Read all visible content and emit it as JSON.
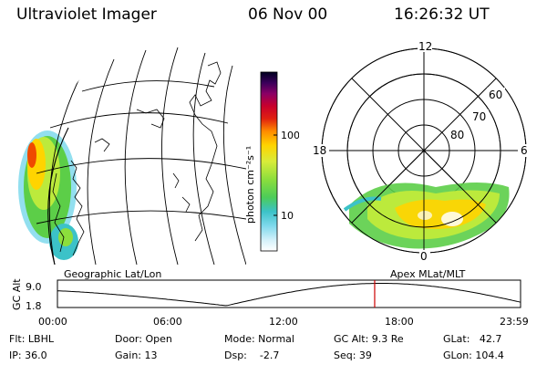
{
  "header": {
    "instrument": "Ultraviolet Imager",
    "date": "06 Nov 00",
    "time": "16:26:32 UT"
  },
  "colorbar": {
    "unit_label": "photon cm⁻²s⁻¹",
    "ticks": [
      {
        "label": "100",
        "value": 100
      },
      {
        "label": "10",
        "value": 10
      }
    ],
    "scale": "log",
    "colors": [
      "#000020",
      "#2a0046",
      "#5a006a",
      "#8a0066",
      "#b8003a",
      "#d01010",
      "#ef4a00",
      "#ff9a00",
      "#ffd400",
      "#e8ec3a",
      "#bcea3c",
      "#8cde3c",
      "#5cce48",
      "#46c88c",
      "#3cc2c8",
      "#7fd9ec",
      "#c9eef8",
      "#f4fbff"
    ]
  },
  "left_map": {
    "projection_label": "Geographic Lat/Lon"
  },
  "right_polar": {
    "projection_label": "Apex MLat/MLT",
    "mlt_labels": [
      "12",
      "18",
      "6",
      "0"
    ],
    "mlat_labels": [
      "60",
      "70",
      "80"
    ]
  },
  "timeline": {
    "y_axis_label": "GC Alt",
    "y_ticks": [
      "9.0",
      "1.8"
    ],
    "x_ticks": [
      "00:00",
      "06:00",
      "12:00",
      "18:00",
      "23:59"
    ],
    "current_time_hours": 16.44,
    "marker_color": "#cc0000"
  },
  "status": {
    "flt": "Flt: LBHL",
    "ip": "IP: 36.0",
    "door": "Door: Open",
    "gain": "Gain: 13",
    "mode": "Mode: Normal",
    "dsp": "Dsp:    -2.7",
    "gc_alt": "GC Alt: 9.3 Re",
    "seq": "Seq: 39",
    "glat": "GLat:   42.7",
    "glon": "GLon: 104.4"
  }
}
